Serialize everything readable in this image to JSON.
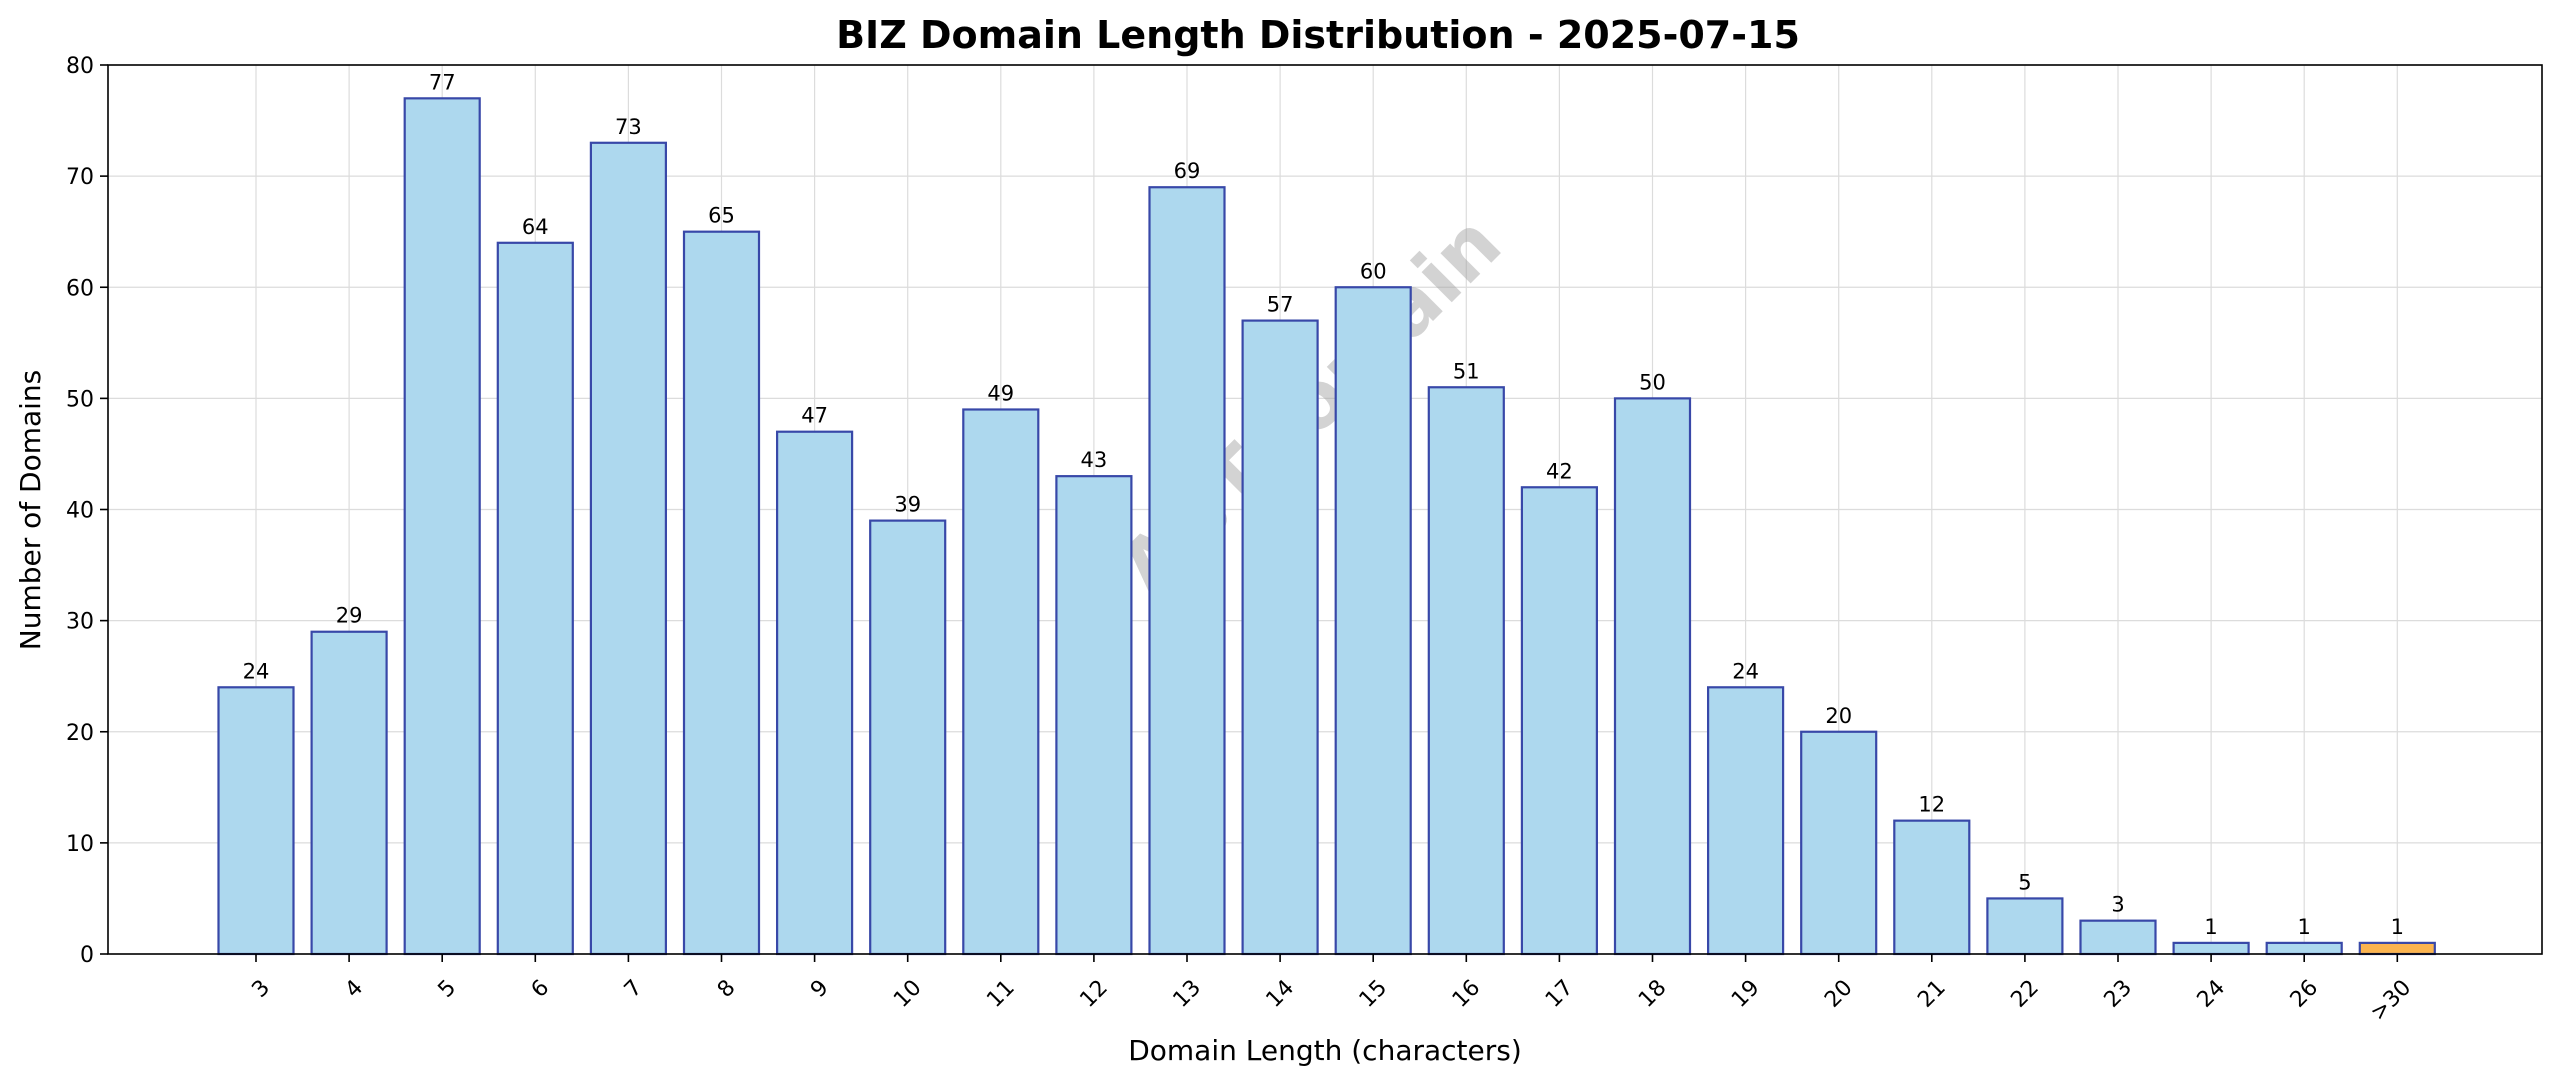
{
  "chart_data": {
    "type": "bar",
    "title": "BIZ Domain Length Distribution - 2025-07-15",
    "xlabel": "Domain Length (characters)",
    "ylabel": "Number of Domains",
    "categories": [
      "3",
      "4",
      "5",
      "6",
      "7",
      "8",
      "9",
      "10",
      "11",
      "12",
      "13",
      "14",
      "15",
      "16",
      "17",
      "18",
      "19",
      "20",
      "21",
      "22",
      "23",
      "24",
      "26",
      ">30"
    ],
    "values": [
      24,
      29,
      77,
      64,
      73,
      65,
      47,
      39,
      49,
      43,
      69,
      57,
      60,
      51,
      42,
      50,
      24,
      20,
      12,
      5,
      3,
      1,
      1,
      1
    ],
    "ylim": [
      0,
      80
    ],
    "yticks": [
      0,
      10,
      20,
      30,
      40,
      50,
      60,
      70,
      80
    ],
    "grid": true,
    "legend": "none",
    "x_tick_rotation": 45,
    "watermark": "ABTdomain",
    "colors": {
      "bar_fill": "#add8ee",
      "bar_edge": "#3848a8",
      "highlight_fill": "#fbb44f",
      "highlight_edge": "#3848a8",
      "grid": "#dcdcdc"
    },
    "highlight_categories": [
      ">30"
    ]
  }
}
